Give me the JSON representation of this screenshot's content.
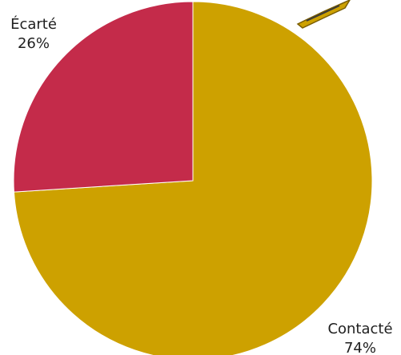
{
  "chart_data": {
    "type": "pie",
    "slices": [
      {
        "label": "Écarté",
        "value_label": "26%",
        "value": 26,
        "color": "#c42b4a"
      },
      {
        "label": "Contacté",
        "value_label": "74%",
        "value": 74,
        "color": "#cda100"
      }
    ]
  },
  "decoration": {
    "corner_mark_color": "#cda100"
  }
}
